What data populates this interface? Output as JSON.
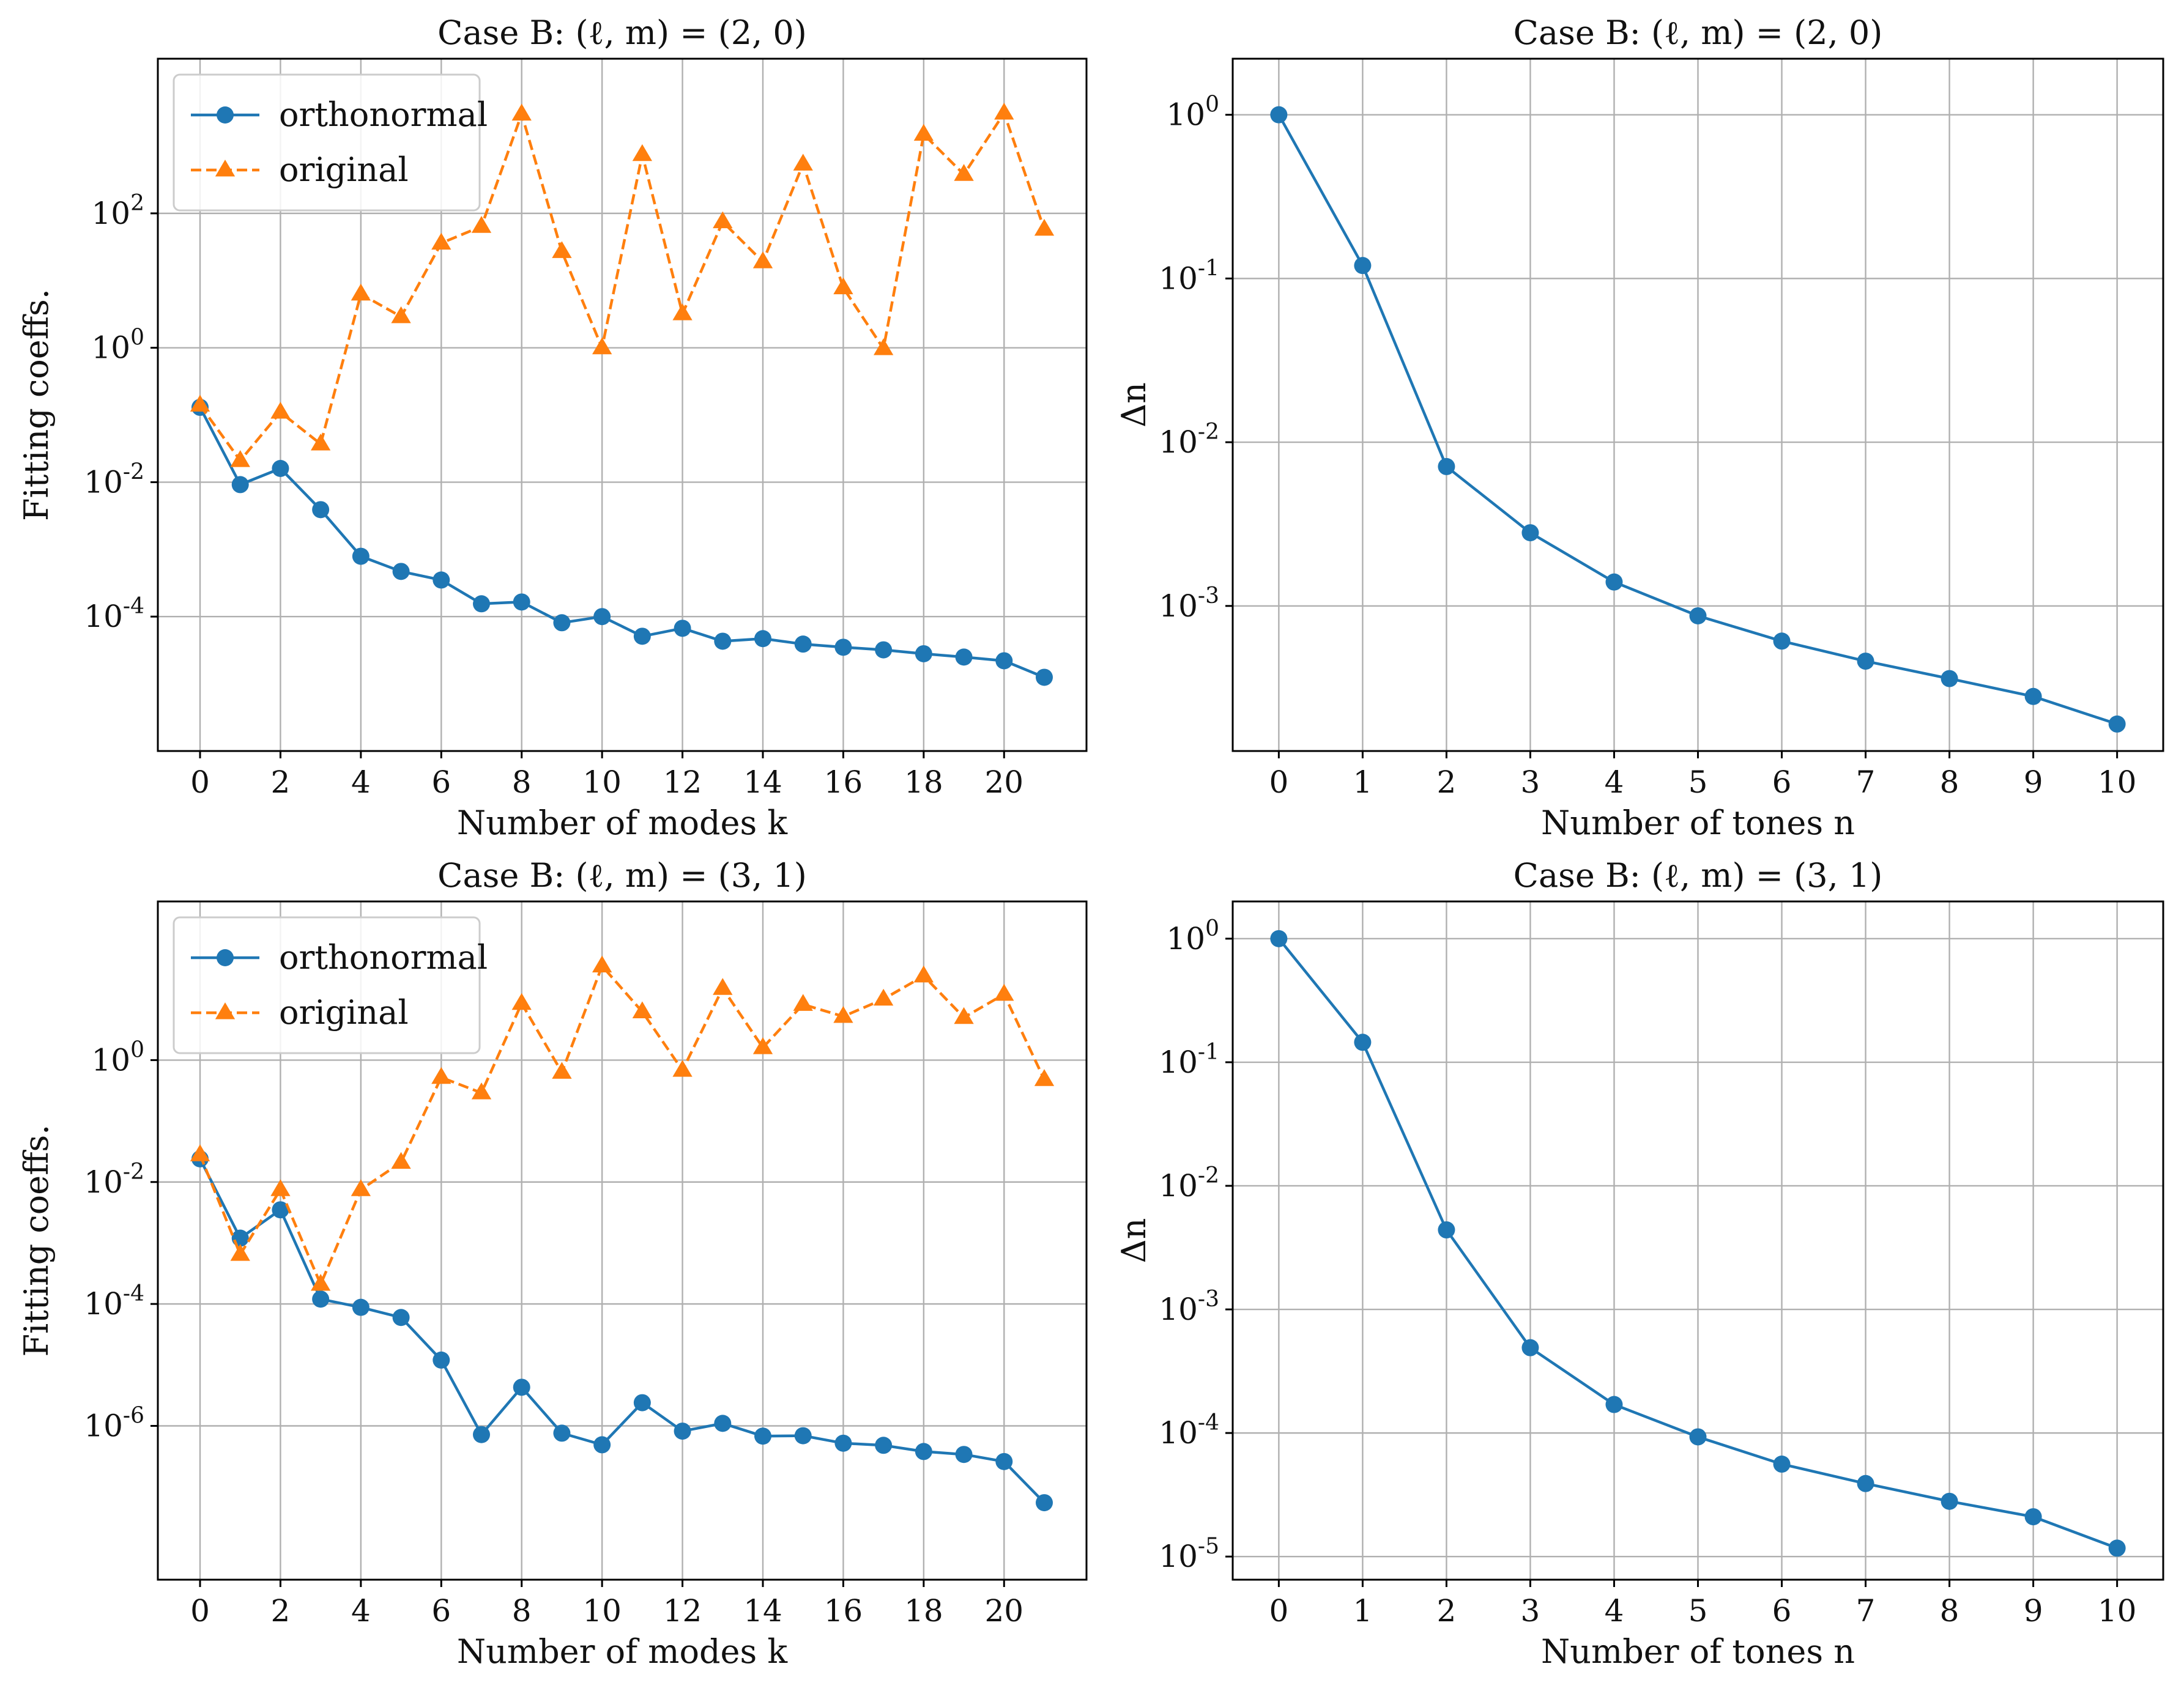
{
  "figure": {
    "colors": {
      "orthonormal": "#1f77b4",
      "original": "#ff7f0e"
    }
  },
  "chart_data": [
    {
      "type": "line",
      "title": "Case B:  (ℓ, m) = (2, 0)",
      "xlabel": "Number of modes  k",
      "ylabel": "Fitting coeffs.",
      "yscale": "log",
      "xlim": [
        -1.05,
        22.05
      ],
      "ylim": [
        1e-06,
        20000.0
      ],
      "xticks": [
        0,
        2,
        4,
        6,
        8,
        10,
        12,
        14,
        16,
        18,
        20
      ],
      "xtick_labels": [
        "0",
        "2",
        "4",
        "6",
        "8",
        "10",
        "12",
        "14",
        "16",
        "18",
        "20"
      ],
      "yticks": [
        0.0001,
        0.01,
        1,
        100
      ],
      "ytick_exponents": [
        "-4",
        "-2",
        "0",
        "2"
      ],
      "grid": true,
      "legend": "upper left",
      "x": [
        0,
        1,
        2,
        3,
        4,
        5,
        6,
        7,
        8,
        9,
        10,
        11,
        12,
        13,
        14,
        15,
        16,
        17,
        18,
        19,
        20,
        21
      ],
      "series": [
        {
          "name": "orthonormal",
          "color": "#1f77b4",
          "marker": "circle",
          "dash": "solid",
          "values": [
            0.13,
            0.0092,
            0.016,
            0.0039,
            0.00079,
            0.00047,
            0.00035,
            0.000155,
            0.000165,
            8.1e-05,
            0.0001,
            5.1e-05,
            6.7e-05,
            4.3e-05,
            4.7e-05,
            3.9e-05,
            3.5e-05,
            3.2e-05,
            2.8e-05,
            2.5e-05,
            2.2e-05,
            1.25e-05
          ]
        },
        {
          "name": "original",
          "color": "#ff7f0e",
          "marker": "triangle",
          "dash": "dashed",
          "values": [
            0.14,
            0.021,
            0.11,
            0.037,
            6.3,
            2.9,
            36,
            64,
            3000,
            27,
            1.0,
            750,
            3.2,
            75,
            19,
            540,
            7.8,
            0.97,
            1500,
            380,
            3100,
            58
          ]
        }
      ]
    },
    {
      "type": "line",
      "title": "Case B:  (ℓ, m) = (2, 0)",
      "xlabel": "Number of tones  n",
      "ylabel": "Δn",
      "yscale": "log",
      "xlim": [
        -0.55,
        10.55
      ],
      "ylim": [
        0.00013,
        2.2
      ],
      "xticks": [
        0,
        1,
        2,
        3,
        4,
        5,
        6,
        7,
        8,
        9,
        10
      ],
      "xtick_labels": [
        "0",
        "1",
        "2",
        "3",
        "4",
        "5",
        "6",
        "7",
        "8",
        "9",
        "10"
      ],
      "yticks": [
        0.001,
        0.01,
        0.1,
        1
      ],
      "ytick_exponents": [
        "-3",
        "-2",
        "-1",
        "0"
      ],
      "grid": true,
      "x": [
        0,
        1,
        2,
        3,
        4,
        5,
        6,
        7,
        8,
        9,
        10
      ],
      "series": [
        {
          "color": "#1f77b4",
          "marker": "circle",
          "dash": "solid",
          "values": [
            1.0,
            0.12,
            0.0071,
            0.0028,
            0.0014,
            0.00087,
            0.00061,
            0.00046,
            0.00036,
            0.00028,
            0.00019
          ]
        }
      ]
    },
    {
      "type": "line",
      "title": "Case B:  (ℓ, m) = (3, 1)",
      "xlabel": "Number of modes  k",
      "ylabel": "Fitting coeffs.",
      "yscale": "log",
      "xlim": [
        -1.05,
        22.05
      ],
      "ylim": [
        3e-09,
        400
      ],
      "xticks": [
        0,
        2,
        4,
        6,
        8,
        10,
        12,
        14,
        16,
        18,
        20
      ],
      "xtick_labels": [
        "0",
        "2",
        "4",
        "6",
        "8",
        "10",
        "12",
        "14",
        "16",
        "18",
        "20"
      ],
      "yticks": [
        1e-06,
        0.0001,
        0.01,
        1
      ],
      "ytick_exponents": [
        "-6",
        "-4",
        "-2",
        "0"
      ],
      "grid": true,
      "legend": "upper left",
      "x": [
        0,
        1,
        2,
        3,
        4,
        5,
        6,
        7,
        8,
        9,
        10,
        11,
        12,
        13,
        14,
        15,
        16,
        17,
        18,
        19,
        20,
        21
      ],
      "series": [
        {
          "name": "orthonormal",
          "color": "#1f77b4",
          "marker": "circle",
          "dash": "solid",
          "values": [
            0.024,
            0.0012,
            0.0035,
            0.00012,
            8.8e-05,
            6e-05,
            1.2e-05,
            7.2e-07,
            4.3e-06,
            7.6e-07,
            4.9e-07,
            2.4e-06,
            8.2e-07,
            1.1e-06,
            6.8e-07,
            6.9e-07,
            5.2e-07,
            4.8e-07,
            3.8e-07,
            3.4e-07,
            2.6e-07,
            5.5e-08
          ]
        },
        {
          "name": "original",
          "color": "#ff7f0e",
          "marker": "triangle",
          "dash": "dashed",
          "values": [
            0.028,
            0.00065,
            0.0075,
            0.00021,
            0.0075,
            0.021,
            0.52,
            0.29,
            8.5,
            0.63,
            35,
            6.2,
            0.68,
            15,
            1.6,
            8.2,
            5.2,
            10,
            24,
            5.0,
            12,
            0.48
          ]
        }
      ]
    },
    {
      "type": "line",
      "title": "Case B:  (ℓ, m) = (3, 1)",
      "xlabel": "Number of tones  n",
      "ylabel": "Δn",
      "yscale": "log",
      "xlim": [
        -0.55,
        10.55
      ],
      "ylim": [
        6.5e-06,
        2.0
      ],
      "xticks": [
        0,
        1,
        2,
        3,
        4,
        5,
        6,
        7,
        8,
        9,
        10
      ],
      "xtick_labels": [
        "0",
        "1",
        "2",
        "3",
        "4",
        "5",
        "6",
        "7",
        "8",
        "9",
        "10"
      ],
      "yticks": [
        1e-05,
        0.0001,
        0.001,
        0.01,
        0.1,
        1
      ],
      "ytick_exponents": [
        "-5",
        "-4",
        "-3",
        "-2",
        "-1",
        "0"
      ],
      "grid": true,
      "x": [
        0,
        1,
        2,
        3,
        4,
        5,
        6,
        7,
        8,
        9,
        10
      ],
      "series": [
        {
          "color": "#1f77b4",
          "marker": "circle",
          "dash": "solid",
          "values": [
            1.0,
            0.145,
            0.0044,
            0.00049,
            0.00017,
            9.3e-05,
            5.6e-05,
            3.9e-05,
            2.8e-05,
            2.1e-05,
            1.17e-05
          ]
        }
      ]
    }
  ]
}
